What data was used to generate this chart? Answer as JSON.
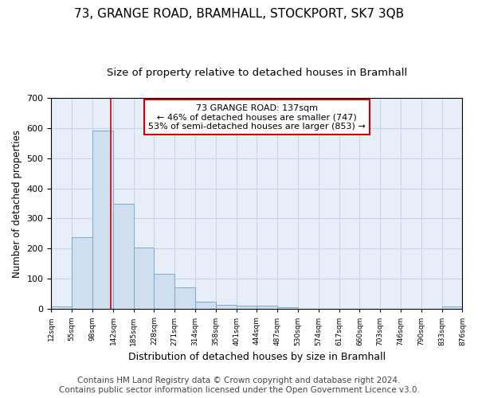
{
  "title": "73, GRANGE ROAD, BRAMHALL, STOCKPORT, SK7 3QB",
  "subtitle": "Size of property relative to detached houses in Bramhall",
  "xlabel": "Distribution of detached houses by size in Bramhall",
  "ylabel": "Number of detached properties",
  "bin_edges": [
    12,
    55,
    98,
    142,
    185,
    228,
    271,
    314,
    358,
    401,
    444,
    487,
    530,
    574,
    617,
    660,
    703,
    746,
    790,
    833,
    876
  ],
  "bar_heights": [
    8,
    237,
    590,
    350,
    205,
    117,
    71,
    25,
    13,
    10,
    10,
    5,
    0,
    0,
    0,
    0,
    0,
    0,
    0,
    8
  ],
  "bar_color": "#d0dff0",
  "bar_edge_color": "#7aaad0",
  "property_size": 137,
  "vline_color": "#cc0000",
  "annotation_line1": "73 GRANGE ROAD: 137sqm",
  "annotation_line2": "← 46% of detached houses are smaller (747)",
  "annotation_line3": "53% of semi-detached houses are larger (853) →",
  "annotation_box_color": "white",
  "annotation_box_edge": "#cc0000",
  "ylim": [
    0,
    700
  ],
  "yticks": [
    0,
    100,
    200,
    300,
    400,
    500,
    600,
    700
  ],
  "grid_color": "#c8d4e8",
  "background_color": "#e8eef8",
  "footer_line1": "Contains HM Land Registry data © Crown copyright and database right 2024.",
  "footer_line2": "Contains public sector information licensed under the Open Government Licence v3.0.",
  "title_fontsize": 11,
  "subtitle_fontsize": 9.5,
  "footer_fontsize": 7.5
}
